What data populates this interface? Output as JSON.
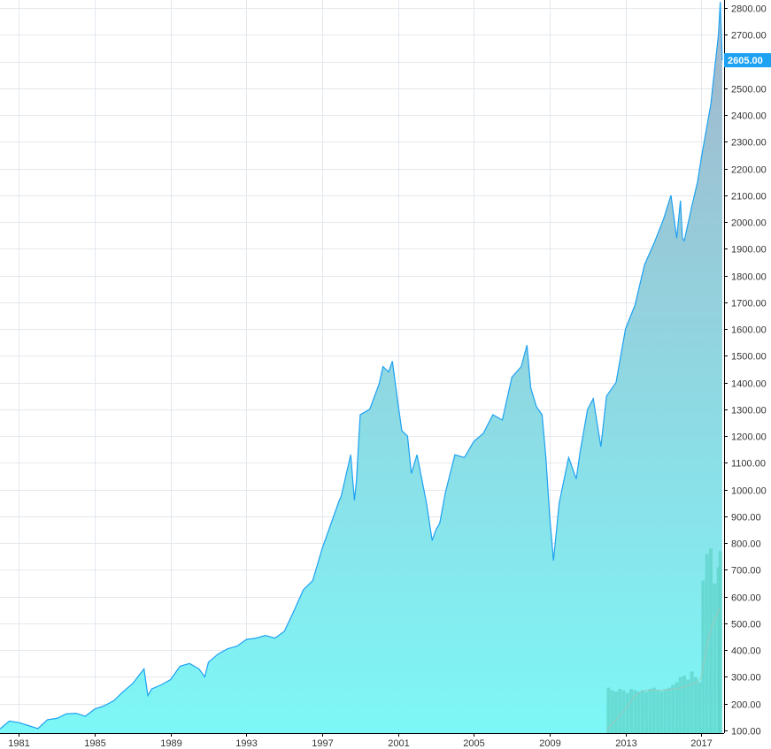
{
  "chart_data": {
    "type": "area",
    "x_tick_labels": [
      "1981",
      "1985",
      "1989",
      "1993",
      "1997",
      "2001",
      "2005",
      "2009",
      "2013",
      "2017"
    ],
    "y_tick_labels": [
      "100.00",
      "200.00",
      "300.00",
      "400.00",
      "500.00",
      "600.00",
      "700.00",
      "800.00",
      "900.00",
      "1000.00",
      "1100.00",
      "1200.00",
      "1300.00",
      "1400.00",
      "1500.00",
      "1600.00",
      "1700.00",
      "1800.00",
      "1900.00",
      "2000.00",
      "2100.00",
      "2200.00",
      "2300.00",
      "2400.00",
      "2500.00",
      "2600.00",
      "2700.00",
      "2800.00"
    ],
    "last_value_label": "2605.00",
    "xlim": [
      1980.0,
      2018.2
    ],
    "ylim": [
      90,
      2830
    ],
    "y_axis_position": "right",
    "grid": true,
    "series": [
      {
        "x": [
          1980.0,
          1980.5,
          1981.0,
          1981.5,
          1982.0,
          1982.5,
          1983.0,
          1983.5,
          1984.0,
          1984.5,
          1985.0,
          1985.5,
          1986.0,
          1986.5,
          1987.0,
          1987.6,
          1987.8,
          1988.0,
          1988.5,
          1989.0,
          1989.5,
          1990.0,
          1990.5,
          1990.8,
          1991.0,
          1991.5,
          1992.0,
          1992.5,
          1993.0,
          1993.5,
          1994.0,
          1994.5,
          1995.0,
          1995.5,
          1996.0,
          1996.5,
          1997.0,
          1997.5,
          1997.9,
          1998.0,
          1998.5,
          1998.7,
          1998.8,
          1999.0,
          1999.5,
          2000.0,
          2000.2,
          2000.5,
          2000.7,
          2001.0,
          2001.2,
          2001.5,
          2001.7,
          2002.0,
          2002.5,
          2002.8,
          2003.0,
          2003.2,
          2003.5,
          2004.0,
          2004.5,
          2005.0,
          2005.5,
          2006.0,
          2006.5,
          2007.0,
          2007.5,
          2007.8,
          2008.0,
          2008.3,
          2008.6,
          2008.8,
          2009.0,
          2009.2,
          2009.5,
          2010.0,
          2010.4,
          2010.6,
          2011.0,
          2011.3,
          2011.7,
          2012.0,
          2012.5,
          2013.0,
          2013.5,
          2014.0,
          2014.5,
          2015.0,
          2015.4,
          2015.7,
          2015.9,
          2016.0,
          2016.1,
          2016.5,
          2016.8,
          2017.0,
          2017.5,
          2017.9,
          2018.0,
          2018.1
        ],
        "y": [
          106,
          135,
          129,
          118,
          107,
          140,
          145,
          162,
          164,
          153,
          180,
          192,
          211,
          245,
          275,
          330,
          230,
          255,
          270,
          290,
          340,
          350,
          330,
          300,
          355,
          385,
          405,
          415,
          440,
          445,
          455,
          445,
          470,
          545,
          625,
          660,
          780,
          880,
          960,
          975,
          1130,
          960,
          1030,
          1280,
          1300,
          1395,
          1460,
          1440,
          1480,
          1320,
          1220,
          1200,
          1060,
          1130,
          950,
          810,
          850,
          875,
          990,
          1130,
          1120,
          1180,
          1210,
          1280,
          1260,
          1420,
          1460,
          1540,
          1380,
          1310,
          1280,
          1120,
          900,
          735,
          950,
          1120,
          1040,
          1140,
          1300,
          1340,
          1160,
          1350,
          1400,
          1600,
          1690,
          1840,
          1920,
          2010,
          2100,
          1940,
          2080,
          1940,
          1930,
          2060,
          2150,
          2240,
          2440,
          2700,
          2823,
          2605
        ],
        "fill_top_color": "#a3b6cb",
        "fill_bottom_color": "#7df7f7",
        "line_color": "#1da1f2"
      },
      {
        "name": "",
        "type": "bar",
        "x": [
          2012.1,
          2012.3,
          2012.5,
          2012.7,
          2012.9,
          2013.1,
          2013.3,
          2013.5,
          2013.7,
          2013.9,
          2014.1,
          2014.3,
          2014.5,
          2014.7,
          2014.9,
          2015.1,
          2015.3,
          2015.5,
          2015.7,
          2015.9,
          2016.1,
          2016.3,
          2016.5,
          2016.7,
          2016.9,
          2017.1,
          2017.3,
          2017.5,
          2017.7,
          2017.9,
          2018.0
        ],
        "y": [
          260,
          250,
          245,
          255,
          250,
          240,
          255,
          250,
          245,
          250,
          245,
          255,
          260,
          250,
          245,
          255,
          260,
          270,
          280,
          300,
          305,
          290,
          320,
          300,
          280,
          660,
          760,
          780,
          650,
          710,
          770
        ],
        "color": "#5fd3c8"
      },
      {
        "name": "",
        "type": "line",
        "x": [
          2012.0,
          2013.0,
          2013.5,
          2014.0,
          2015.0,
          2016.0,
          2016.8,
          2017.0,
          2017.3,
          2017.6,
          2018.0
        ],
        "y": [
          100,
          180,
          230,
          250,
          250,
          260,
          280,
          300,
          420,
          500,
          560
        ],
        "color": "#9cc7bc"
      }
    ]
  }
}
